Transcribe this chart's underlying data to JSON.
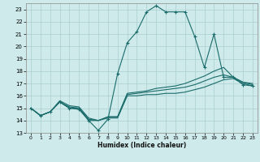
{
  "xlabel": "Humidex (Indice chaleur)",
  "xlim": [
    -0.5,
    23.5
  ],
  "ylim": [
    13,
    23.5
  ],
  "yticks": [
    13,
    14,
    15,
    16,
    17,
    18,
    19,
    20,
    21,
    22,
    23
  ],
  "xticks": [
    0,
    1,
    2,
    3,
    4,
    5,
    6,
    7,
    8,
    9,
    10,
    11,
    12,
    13,
    14,
    15,
    16,
    17,
    18,
    19,
    20,
    21,
    22,
    23
  ],
  "bg_color": "#ceeaea",
  "grid_color": "#aacece",
  "line_color": "#1a6b6b",
  "series": [
    {
      "x": [
        0,
        1,
        2,
        3,
        4,
        5,
        6,
        7,
        8,
        9,
        10,
        11,
        12,
        13,
        14,
        15,
        16,
        17,
        18,
        19,
        20,
        21,
        22,
        23
      ],
      "y": [
        15,
        14.4,
        14.7,
        15.5,
        15.0,
        15.0,
        14.0,
        14.0,
        14.2,
        14.2,
        16.0,
        16.0,
        16.1,
        16.1,
        16.2,
        16.2,
        16.3,
        16.5,
        16.7,
        17.0,
        17.3,
        17.4,
        17.0,
        16.8
      ],
      "marker": false
    },
    {
      "x": [
        0,
        1,
        2,
        3,
        4,
        5,
        6,
        7,
        8,
        9,
        10,
        11,
        12,
        13,
        14,
        15,
        16,
        17,
        18,
        19,
        20,
        21,
        22,
        23
      ],
      "y": [
        15,
        14.4,
        14.7,
        15.5,
        15.1,
        15.0,
        14.1,
        14.0,
        14.3,
        14.3,
        16.1,
        16.2,
        16.3,
        16.4,
        16.5,
        16.6,
        16.7,
        16.9,
        17.2,
        17.5,
        17.7,
        17.5,
        17.1,
        16.9
      ],
      "marker": false
    },
    {
      "x": [
        0,
        1,
        2,
        3,
        4,
        5,
        6,
        7,
        8,
        9,
        10,
        11,
        12,
        13,
        14,
        15,
        16,
        17,
        18,
        19,
        20,
        21,
        22,
        23
      ],
      "y": [
        15,
        14.4,
        14.7,
        15.6,
        15.2,
        15.1,
        14.2,
        14.0,
        14.3,
        14.3,
        16.2,
        16.3,
        16.4,
        16.6,
        16.7,
        16.8,
        17.0,
        17.3,
        17.6,
        18.0,
        18.3,
        17.5,
        17.1,
        17.0
      ],
      "marker": false
    },
    {
      "x": [
        0,
        1,
        2,
        3,
        4,
        5,
        6,
        7,
        8,
        9,
        10,
        11,
        12,
        13,
        14,
        15,
        16,
        17,
        18,
        19,
        20,
        21,
        22,
        23
      ],
      "y": [
        15,
        14.4,
        14.7,
        15.5,
        15.0,
        14.9,
        14.0,
        13.2,
        14.1,
        17.8,
        20.3,
        21.2,
        22.8,
        23.3,
        22.8,
        22.8,
        22.8,
        20.8,
        18.3,
        21.0,
        17.5,
        17.5,
        16.9,
        16.8
      ],
      "marker": true
    }
  ]
}
